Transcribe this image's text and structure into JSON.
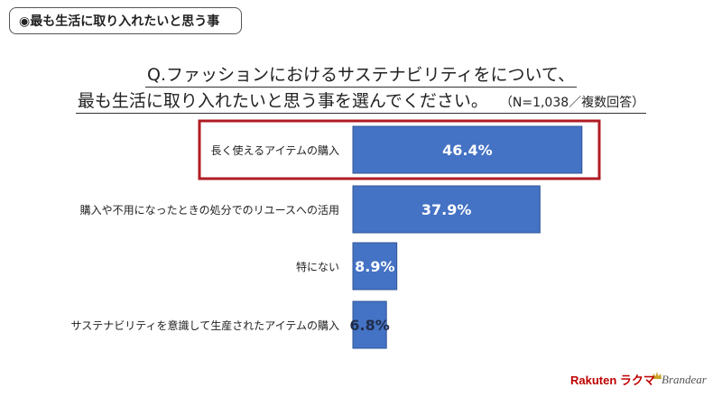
{
  "badge": {
    "label": "◉最も生活に取り入れたいと思う事"
  },
  "title": {
    "line1": "Q.ファッションにおけるサステナビリティをについて、",
    "line2": "最も生活に取り入れたいと思う事を選んでください。",
    "note": "（N=1,038／複数回答）"
  },
  "chart_data": {
    "type": "bar",
    "orientation": "horizontal",
    "categories": [
      "長く使えるアイテムの購入",
      "購入や不用になったときの処分でのリユースへの活用",
      "特にない",
      "サステナビリティを意識して生産されたアイテムの購入"
    ],
    "values": [
      46.4,
      37.9,
      8.9,
      6.8
    ],
    "value_labels": [
      "46.4%",
      "37.9%",
      "8.9%",
      "6.8%"
    ],
    "highlighted_category": "長く使えるアイテムの購入",
    "grid": false,
    "legend": "none"
  },
  "colors": {
    "bar": "#4472C4",
    "bar_border": "#2F5597",
    "highlight_frame": "#B01C24",
    "value_label_inside": "#ffffff",
    "value_label_outside": "#1f2d4a"
  },
  "logos": {
    "rakuten": "Rakuten ラクマ",
    "brandear": "Brandear"
  }
}
